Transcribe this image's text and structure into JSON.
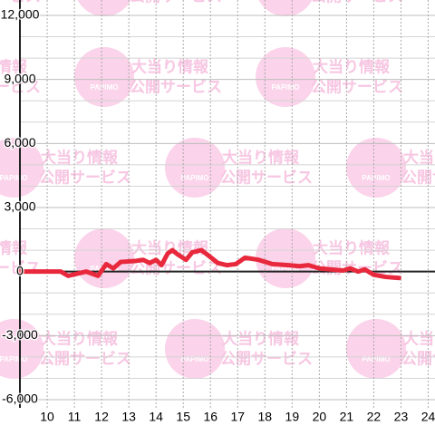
{
  "chart_data": {
    "type": "line",
    "watermark": {
      "logo": "PAPIMO",
      "title": "大当り情報",
      "subtitle": "公開サービス"
    },
    "x": [
      9,
      10.5,
      10.77,
      11.1,
      11.43,
      11.87,
      12.17,
      12.43,
      12.7,
      13.27,
      13.53,
      13.77,
      14.0,
      14.2,
      14.43,
      14.6,
      14.8,
      15.1,
      15.33,
      15.67,
      15.93,
      16.27,
      16.6,
      16.93,
      17.27,
      17.77,
      18.27,
      18.87,
      19.27,
      19.6,
      20.0,
      20.43,
      20.87,
      21.13,
      21.43,
      21.67,
      22.0,
      22.43,
      22.93
    ],
    "series": [
      {
        "color": "#e8283c",
        "values": [
          0,
          0,
          -200,
          -100,
          0,
          -200,
          350,
          150,
          450,
          500,
          550,
          400,
          550,
          300,
          850,
          1000,
          800,
          550,
          900,
          1000,
          750,
          400,
          300,
          350,
          650,
          550,
          350,
          300,
          250,
          300,
          150,
          100,
          50,
          150,
          0,
          100,
          -150,
          -250,
          -300
        ]
      }
    ],
    "xlim": [
      9,
      24.25
    ],
    "xticks": [
      10,
      11,
      12,
      13,
      14,
      15,
      16,
      17,
      18,
      19,
      20,
      21,
      22,
      23,
      24
    ],
    "ylim": [
      -6000,
      12000
    ],
    "yticks": [
      {
        "value": 12000,
        "label": "12,000"
      },
      {
        "value": 9000,
        "label": "9,000"
      },
      {
        "value": 6000,
        "label": "6,000"
      },
      {
        "value": 3000,
        "label": "3,000"
      },
      0,
      {
        "value": -3000,
        "label": "-3,000"
      },
      {
        "value": -6000,
        "label": "-6,000"
      }
    ],
    "y_minor_ticks": [
      -5000,
      -4000,
      -2000,
      -1000,
      1000,
      2000,
      4000,
      5000,
      7000,
      8000,
      10000,
      11000
    ],
    "grid": true
  }
}
